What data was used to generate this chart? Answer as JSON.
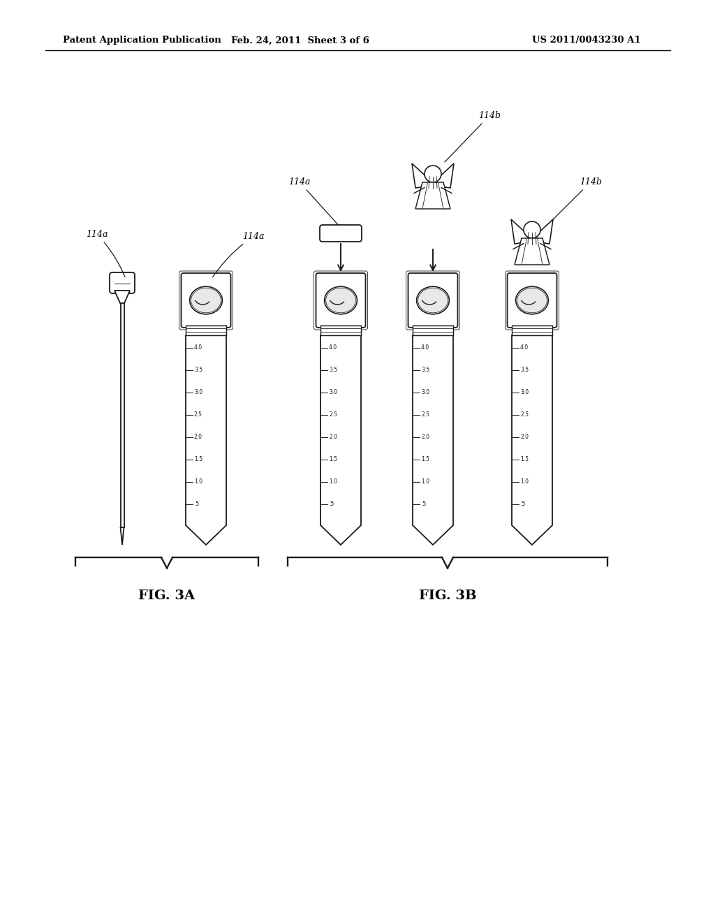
{
  "bg_color": "#ffffff",
  "line_color": "#1a1a1a",
  "header_text": "Patent Application Publication",
  "header_date": "Feb. 24, 2011  Sheet 3 of 6",
  "header_patent": "US 2011/0043230 A1",
  "fig3a_label": "FIG. 3A",
  "fig3b_label": "FIG. 3B",
  "scale_values": [
    "4.0",
    "3.5",
    "3.0",
    "2.5",
    "2.0",
    "1.5",
    "1.0",
    ".5"
  ],
  "ref_114a": "114a",
  "ref_114b": "114b"
}
